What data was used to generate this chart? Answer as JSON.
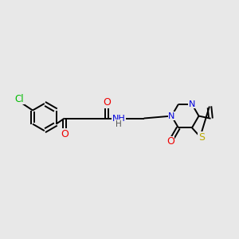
{
  "bg_color": "#e8e8e8",
  "bond_color": "#000000",
  "lw": 1.4,
  "atom_colors": {
    "N": "#0000dd",
    "O": "#ee0000",
    "S": "#bbaa00",
    "Cl": "#00bb00",
    "H": "#555555"
  },
  "fs": 8.0
}
